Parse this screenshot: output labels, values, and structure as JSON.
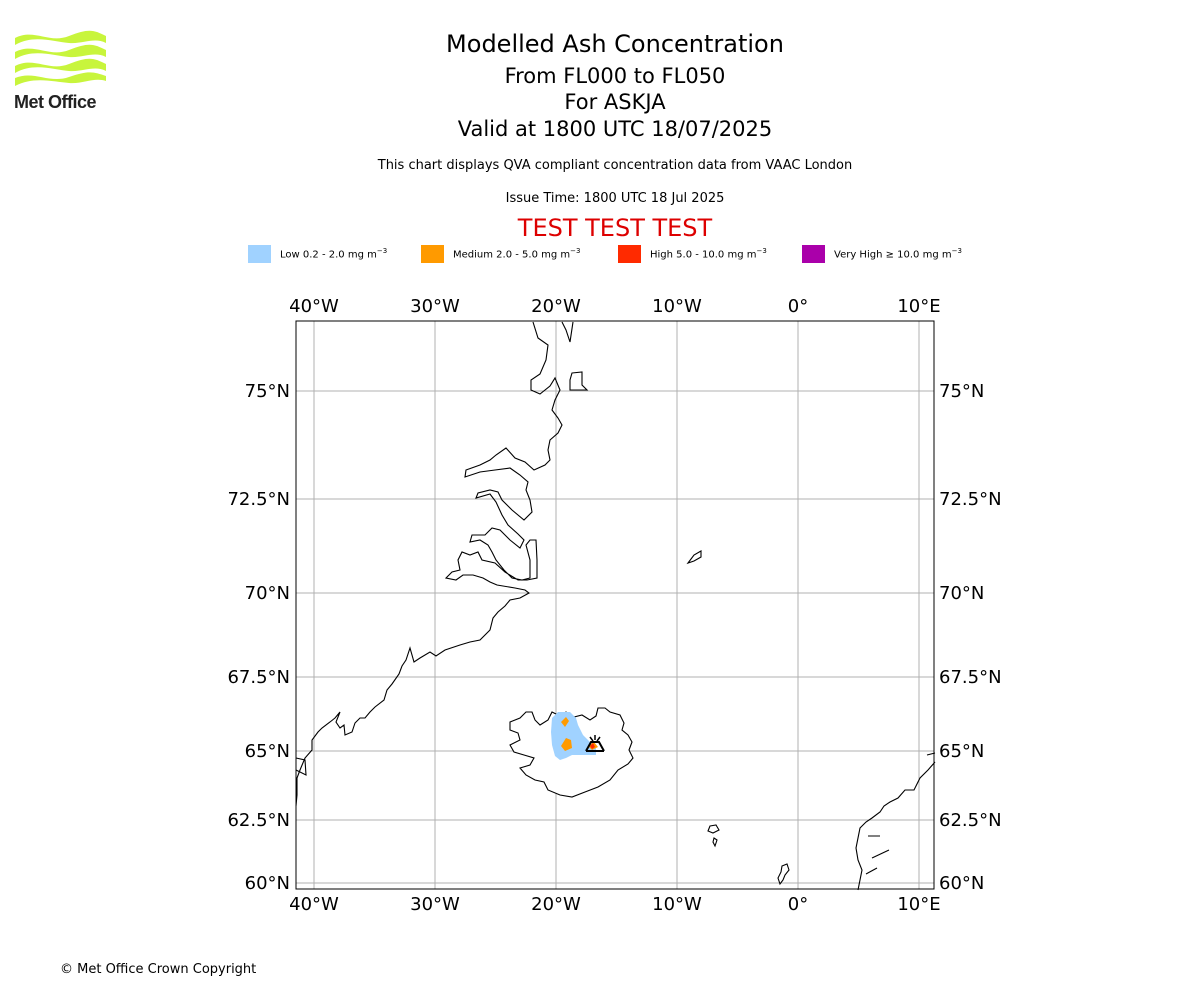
{
  "logo": {
    "text": "Met Office",
    "color": "#c8f53c"
  },
  "header": {
    "title": "Modelled Ash Concentration",
    "level_range": "From FL000 to FL050",
    "volcano": "For ASKJA",
    "valid_time": "Valid at 1800 UTC 18/07/2025",
    "note": "This chart displays QVA compliant concentration data from VAAC London",
    "issue_time": "Issue Time: 1800 UTC 18 Jul 2025",
    "test_banner": "TEST TEST TEST",
    "test_color": "#dd0000"
  },
  "legend": [
    {
      "label_pre": "Low 0.2 - 2.0 mg m",
      "sup": "−3",
      "color": "#a0d2ff"
    },
    {
      "label_pre": "Medium 2.0 - 5.0 mg m",
      "sup": "−3",
      "color": "#ff9a00"
    },
    {
      "label_pre": "High 5.0 - 10.0 mg m",
      "sup": "−3",
      "color": "#ff2a00"
    },
    {
      "label_pre": "Very High  ≥  10.0 mg m",
      "sup": "−3",
      "color": "#aa00aa"
    }
  ],
  "map_data": {
    "lon_ticks": [
      {
        "value": -40,
        "label": "40°W"
      },
      {
        "value": -30,
        "label": "30°W"
      },
      {
        "value": -20,
        "label": "20°W"
      },
      {
        "value": -10,
        "label": "10°W"
      },
      {
        "value": 0,
        "label": "0°"
      },
      {
        "value": 10,
        "label": "10°E"
      }
    ],
    "lat_ticks": [
      {
        "value": 75,
        "label": "75°N"
      },
      {
        "value": 72.5,
        "label": "72.5°N"
      },
      {
        "value": 70,
        "label": "70°N"
      },
      {
        "value": 67.5,
        "label": "67.5°N"
      },
      {
        "value": 65,
        "label": "65°N"
      },
      {
        "value": 62.5,
        "label": "62.5°N"
      },
      {
        "value": 60,
        "label": "60°N"
      }
    ],
    "volcano_name": "ASKJA",
    "volcano_icon": "volcano-icon"
  },
  "footer": {
    "copyright": "© Met Office Crown Copyright"
  }
}
